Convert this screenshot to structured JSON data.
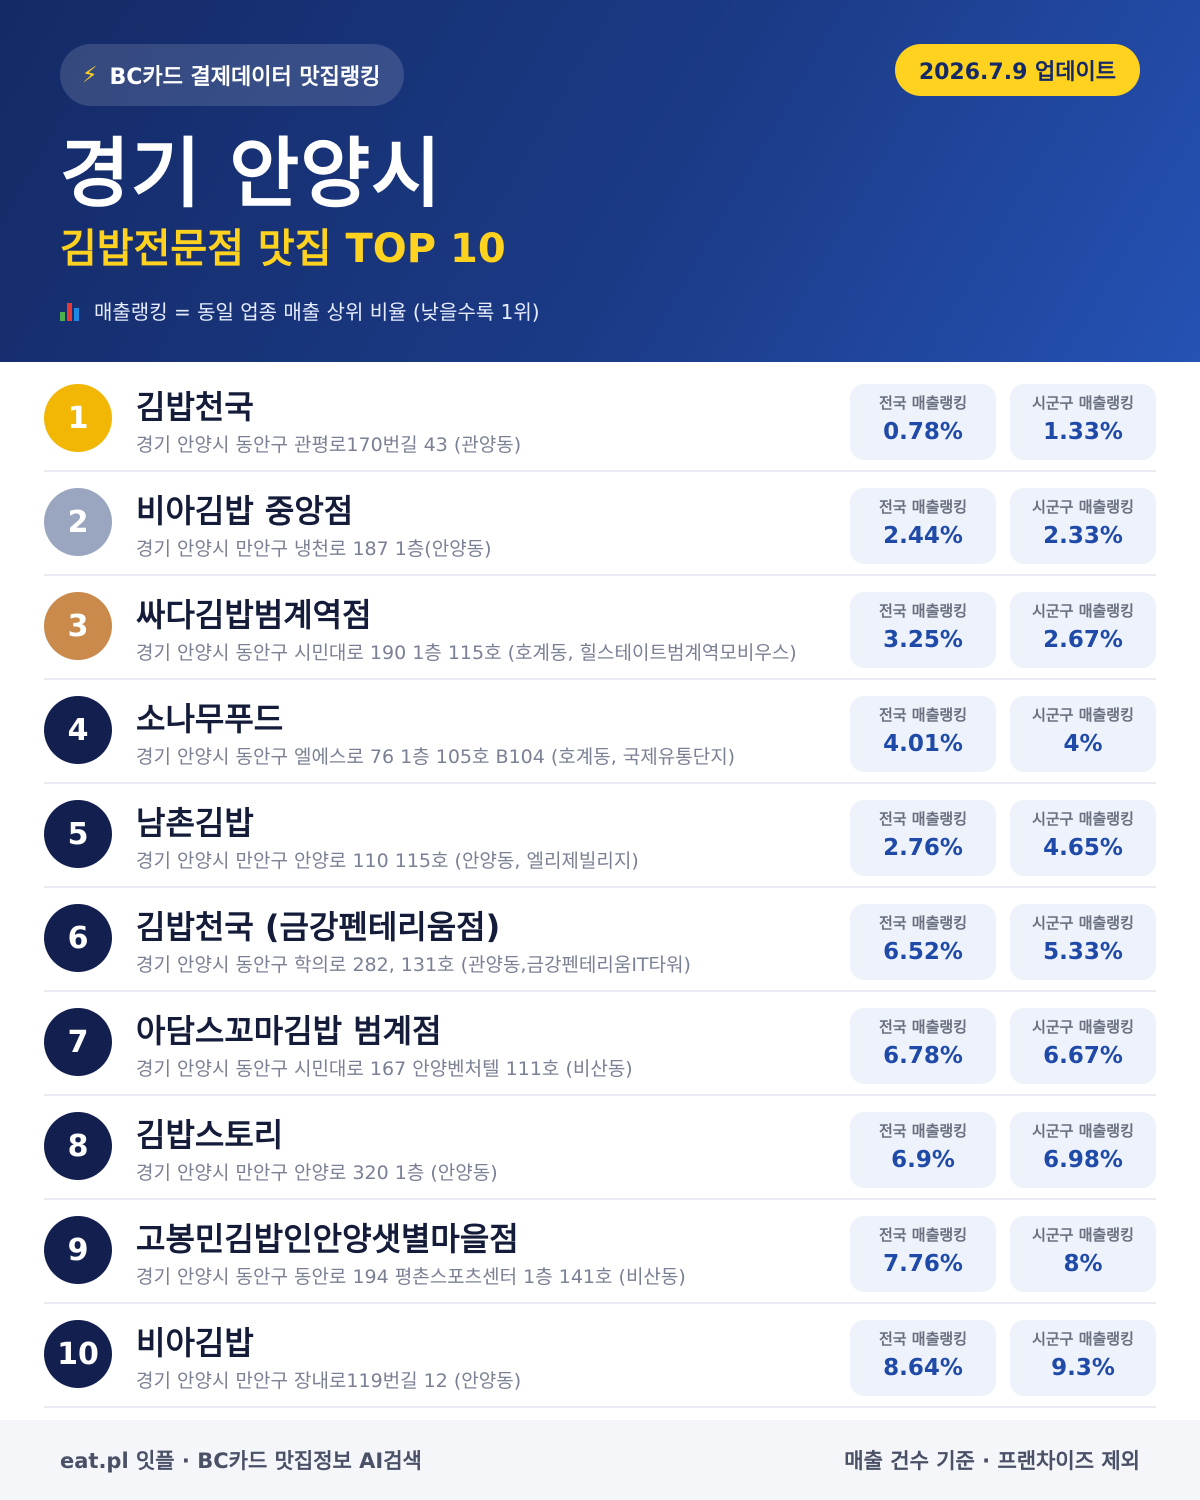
{
  "header": {
    "source_badge": "BC카드 결제데이터 맛집랭킹",
    "source_icon": "lightning-bolt-icon",
    "update_badge": "2026.7.9 업데이트",
    "region": "경기 안양시",
    "category_title": "김밥전문점 맛집 TOP 10",
    "note_icon": "bar-chart-icon",
    "note": "매출랭킹 = 동일 업종 매출 상위 비율 (낮을수록 1위)"
  },
  "metric_labels": {
    "national": "전국 매출랭킹",
    "local": "시군구 매출랭킹"
  },
  "colors": {
    "gold": "#f2b705",
    "silver": "#9aa6bf",
    "bronze": "#c98a4b",
    "navy": "#13204f",
    "accent_yellow": "#ffd21f",
    "value_blue": "#1f4aa8"
  },
  "restaurants": [
    {
      "rank": "1",
      "name": "김밥천국",
      "address": "경기 안양시 동안구 관평로170번길 43 (관양동)",
      "national": "0.78%",
      "local": "1.33%"
    },
    {
      "rank": "2",
      "name": "비아김밥 중앙점",
      "address": "경기 안양시 만안구 냉천로 187 1층(안양동)",
      "national": "2.44%",
      "local": "2.33%"
    },
    {
      "rank": "3",
      "name": "싸다김밥범계역점",
      "address": "경기 안양시 동안구 시민대로 190 1층 115호 (호계동, 힐스테이트범계역모비우스)",
      "national": "3.25%",
      "local": "2.67%"
    },
    {
      "rank": "4",
      "name": "소나무푸드",
      "address": "경기 안양시 동안구 엘에스로 76 1층 105호 B104 (호계동, 국제유통단지)",
      "national": "4.01%",
      "local": "4%"
    },
    {
      "rank": "5",
      "name": "남촌김밥",
      "address": "경기 안양시 만안구 안양로 110 115호 (안양동, 엘리제빌리지)",
      "national": "2.76%",
      "local": "4.65%"
    },
    {
      "rank": "6",
      "name": "김밥천국 (금강펜테리움점)",
      "address": "경기 안양시 동안구 학의로 282, 131호 (관양동,금강펜테리움IT타워)",
      "national": "6.52%",
      "local": "5.33%"
    },
    {
      "rank": "7",
      "name": "아담스꼬마김밥 범계점",
      "address": "경기 안양시 동안구 시민대로 167 안양벤처텔 111호 (비산동)",
      "national": "6.78%",
      "local": "6.67%"
    },
    {
      "rank": "8",
      "name": "김밥스토리",
      "address": "경기 안양시 만안구 안양로 320 1층 (안양동)",
      "national": "6.9%",
      "local": "6.98%"
    },
    {
      "rank": "9",
      "name": "고봉민김밥인안양샛별마을점",
      "address": "경기 안양시 동안구 동안로 194 평촌스포츠센터 1층 141호 (비산동)",
      "national": "7.76%",
      "local": "8%"
    },
    {
      "rank": "10",
      "name": "비아김밥",
      "address": "경기 안양시 만안구 장내로119번길 12 (안양동)",
      "national": "8.64%",
      "local": "9.3%"
    }
  ],
  "footer": {
    "left": "eat.pl 잇플 · BC카드 맛집정보 AI검색",
    "right": "매출 건수 기준 · 프랜차이즈 제외"
  }
}
